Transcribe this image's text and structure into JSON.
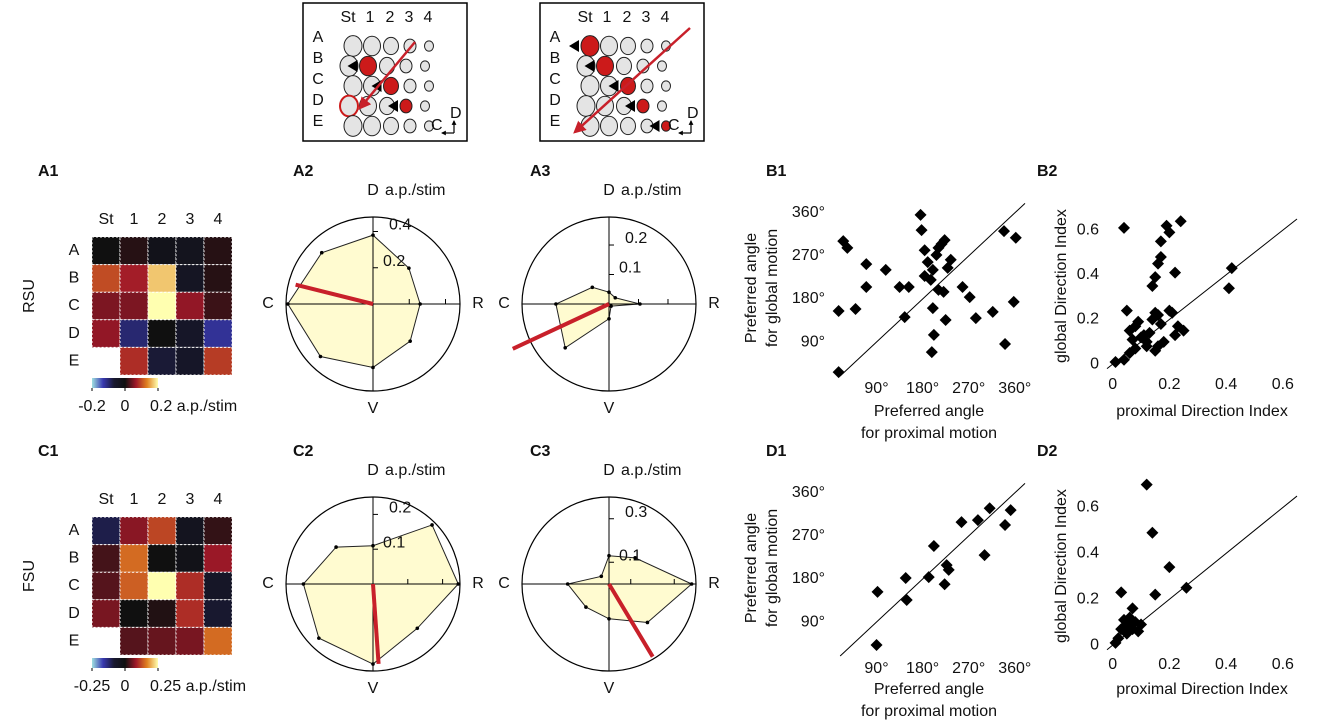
{
  "schematics": [
    {
      "columns": [
        "St",
        "1",
        "2",
        "3",
        "4"
      ],
      "rows": [
        "A",
        "B",
        "C",
        "D",
        "E"
      ],
      "compass": [
        "C",
        "D"
      ]
    },
    {
      "columns": [
        "St",
        "1",
        "2",
        "3",
        "4"
      ],
      "rows": [
        "A",
        "B",
        "C",
        "D",
        "E"
      ],
      "compass": [
        "C",
        "D"
      ]
    }
  ],
  "row_labels": [
    "RSU",
    "FSU"
  ],
  "chart_data": [
    {
      "type": "heatmap",
      "panel": "A1",
      "columns": [
        "St",
        "1",
        "2",
        "3",
        "4"
      ],
      "rows": [
        "A",
        "B",
        "C",
        "D",
        "E"
      ],
      "values": [
        [
          0.0,
          0.01,
          -0.02,
          -0.03,
          0.01
        ],
        [
          0.1,
          0.07,
          0.17,
          -0.04,
          0.01
        ],
        [
          0.05,
          0.05,
          0.2,
          0.06,
          0.02
        ],
        [
          0.06,
          -0.1,
          0.0,
          -0.05,
          -0.12
        ],
        [
          null,
          0.08,
          -0.07,
          -0.05,
          0.09
        ]
      ],
      "colorscale": [
        "#a0e0e0",
        "#3838b0",
        "#181830",
        "#101010",
        "#a01828",
        "#e08020",
        "#ffffb0"
      ],
      "clim": [
        -0.2,
        0.2
      ],
      "cticks": [
        {
          "value": -0.2,
          "label": "-0.2"
        },
        0,
        {
          "value": 0.2,
          "label": "0.2 a.p./stim"
        }
      ]
    },
    {
      "type": "polar",
      "panel": "A2",
      "direction_labels": [
        "R",
        "D",
        "C",
        "V"
      ],
      "rlabel": "a.p./stim",
      "rlim": [
        0,
        0.48
      ],
      "rticks": [
        0.2,
        0.4
      ],
      "theta": [
        0,
        45,
        90,
        135,
        180,
        225,
        270,
        315
      ],
      "values": [
        0.26,
        0.28,
        0.38,
        0.4,
        0.47,
        0.41,
        0.35,
        0.29
      ],
      "color": "#fffbd0",
      "vector": {
        "angle": 166,
        "value": 0.44,
        "color": "#c8202a"
      }
    },
    {
      "type": "polar",
      "panel": "A3",
      "direction_labels": [
        "R",
        "D",
        "C",
        "V"
      ],
      "rlabel": "a.p./stim",
      "rlim": [
        0,
        0.295
      ],
      "rticks": [
        0.1,
        0.2
      ],
      "theta": [
        0,
        45,
        90,
        135,
        180,
        225,
        270,
        315
      ],
      "values": [
        0.105,
        0.03,
        0.04,
        0.08,
        0.18,
        0.21,
        0.05,
        0.01
      ],
      "color": "#fffbd0",
      "vector": {
        "angle": 205,
        "value": 0.36,
        "color": "#c8202a"
      }
    },
    {
      "type": "scatter",
      "panel": "B1",
      "xlabel": [
        "Preferred angle",
        "for proximal motion"
      ],
      "ylabel": [
        "Preferred angle",
        "for global motion"
      ],
      "xlim": [
        5,
        380
      ],
      "ylim": [
        19,
        387
      ],
      "xticks": [
        {
          "value": 90,
          "label": "90°"
        },
        {
          "value": 180,
          "label": "180°"
        },
        {
          "value": 270,
          "label": "270°"
        },
        {
          "value": 360,
          "label": "360°"
        }
      ],
      "yticks": [
        {
          "value": 90,
          "label": "90°"
        },
        {
          "value": 180,
          "label": "180°"
        },
        {
          "value": 270,
          "label": "270°"
        },
        {
          "value": 360,
          "label": "360°"
        }
      ],
      "x": [
        25,
        33,
        16,
        49,
        70,
        70,
        108,
        135,
        153,
        176,
        178,
        184,
        184,
        190,
        196,
        200,
        207,
        211,
        217,
        223,
        229,
        235,
        200,
        211,
        221,
        145,
        258,
        272,
        284,
        317,
        341,
        339,
        362,
        358,
        198,
        202,
        225,
        16
      ],
      "values": [
        301,
        287,
        155,
        159,
        253,
        205,
        241,
        205,
        205,
        356,
        324,
        282,
        228,
        257,
        220,
        241,
        272,
        287,
        295,
        303,
        245,
        262,
        161,
        199,
        195,
        142,
        205,
        184,
        140,
        153,
        86,
        322,
        308,
        174,
        69,
        105,
        136,
        27
      ],
      "color": "#000000",
      "diagonal": true
    },
    {
      "type": "scatter",
      "panel": "B2",
      "xlabel": [
        "proximal Direction Index"
      ],
      "ylabel": [
        "global Direction Index"
      ],
      "xlim": [
        -0.02,
        0.65
      ],
      "ylim": [
        -0.035,
        0.735
      ],
      "xticks": [
        0,
        0.2,
        0.4,
        0.6
      ],
      "yticks": [
        0,
        0.2,
        0.4,
        0.6
      ],
      "x": [
        0.04,
        0.01,
        0.04,
        0.06,
        0.07,
        0.08,
        0.06,
        0.1,
        0.12,
        0.13,
        0.09,
        0.11,
        0.05,
        0.14,
        0.15,
        0.16,
        0.17,
        0.15,
        0.16,
        0.18,
        0.2,
        0.21,
        0.22,
        0.23,
        0.25,
        0.14,
        0.15,
        0.16,
        0.17,
        0.17,
        0.19,
        0.2,
        0.24,
        0.22,
        0.42,
        0.41,
        0.08,
        0.12
      ],
      "values": [
        0.61,
        0.01,
        0.02,
        0.05,
        0.11,
        0.17,
        0.15,
        0.12,
        0.1,
        0.14,
        0.19,
        0.13,
        0.24,
        0.2,
        0.23,
        0.22,
        0.18,
        0.06,
        0.08,
        0.1,
        0.24,
        0.23,
        0.13,
        0.17,
        0.15,
        0.35,
        0.39,
        0.45,
        0.48,
        0.55,
        0.62,
        0.59,
        0.64,
        0.41,
        0.43,
        0.34,
        0.07,
        0.08
      ],
      "color": "#000000",
      "diagonal": true
    },
    {
      "type": "heatmap",
      "panel": "C1",
      "columns": [
        "St",
        "1",
        "2",
        "3",
        "4"
      ],
      "rows": [
        "A",
        "B",
        "C",
        "D",
        "E"
      ],
      "values": [
        [
          -0.1,
          0.07,
          0.12,
          -0.04,
          0.02
        ],
        [
          0.03,
          0.15,
          0.0,
          -0.02,
          0.08
        ],
        [
          0.04,
          0.14,
          0.25,
          0.1,
          -0.06
        ],
        [
          0.06,
          0.0,
          0.01,
          0.1,
          -0.08
        ],
        [
          null,
          0.04,
          0.05,
          0.06,
          0.15
        ]
      ],
      "colorscale": [
        "#a0e0e0",
        "#3838b0",
        "#181830",
        "#101010",
        "#a01828",
        "#e08020",
        "#ffffb0"
      ],
      "clim": [
        -0.25,
        0.25
      ],
      "cticks": [
        {
          "value": -0.25,
          "label": "-0.25"
        },
        0,
        {
          "value": 0.25,
          "label": "0.25 a.p./stim"
        }
      ]
    },
    {
      "type": "polar",
      "panel": "C2",
      "direction_labels": [
        "R",
        "D",
        "C",
        "V"
      ],
      "rlabel": "a.p./stim",
      "rlim": [
        0,
        0.25
      ],
      "rticks": [
        0.1,
        0.2
      ],
      "theta": [
        0,
        45,
        90,
        135,
        180,
        225,
        270,
        315
      ],
      "values": [
        0.245,
        0.24,
        0.11,
        0.15,
        0.2,
        0.22,
        0.23,
        0.18
      ],
      "color": "#fffbd0",
      "vector": {
        "angle": 274,
        "value": 0.23,
        "color": "#c8202a"
      }
    },
    {
      "type": "polar",
      "panel": "C3",
      "direction_labels": [
        "R",
        "D",
        "C",
        "V"
      ],
      "rlabel": "a.p./stim",
      "rlim": [
        0,
        0.4
      ],
      "rticks": [
        0.1,
        0.3
      ],
      "theta": [
        0,
        45,
        90,
        135,
        180,
        225,
        270,
        315
      ],
      "values": [
        0.38,
        0.17,
        0.13,
        0.05,
        0.19,
        0.15,
        0.16,
        0.25
      ],
      "color": "#fffbd0",
      "vector": {
        "angle": 301,
        "value": 0.39,
        "color": "#c8202a"
      }
    },
    {
      "type": "scatter",
      "panel": "D1",
      "xlabel": [
        "Preferred angle",
        "for proximal motion"
      ],
      "ylabel": [
        "Preferred angle",
        "for global motion"
      ],
      "xlim": [
        5,
        380
      ],
      "ylim": [
        19,
        387
      ],
      "xticks": [
        {
          "value": 90,
          "label": "90°"
        },
        {
          "value": 180,
          "label": "180°"
        },
        {
          "value": 270,
          "label": "270°"
        },
        {
          "value": 360,
          "label": "360°"
        }
      ],
      "yticks": [
        {
          "value": 90,
          "label": "90°"
        },
        {
          "value": 180,
          "label": "180°"
        },
        {
          "value": 270,
          "label": "270°"
        },
        {
          "value": 360,
          "label": "360°"
        }
      ],
      "x": [
        90,
        92,
        147,
        149,
        192,
        202,
        227,
        231,
        223,
        256,
        288,
        301,
        311,
        341,
        352
      ],
      "values": [
        42,
        153,
        182,
        136,
        184,
        249,
        209,
        199,
        169,
        299,
        303,
        230,
        328,
        293,
        324
      ],
      "color": "#000000",
      "diagonal": true
    },
    {
      "type": "scatter",
      "panel": "D2",
      "xlabel": [
        "proximal Direction Index"
      ],
      "ylabel": [
        "global Direction Index"
      ],
      "xlim": [
        -0.02,
        0.65
      ],
      "ylim": [
        -0.03,
        0.72
      ],
      "xticks": [
        0,
        0.2,
        0.4,
        0.6
      ],
      "yticks": [
        0,
        0.2,
        0.4,
        0.6
      ],
      "x": [
        0.12,
        0.14,
        0.2,
        0.15,
        0.26,
        0.03,
        0.07,
        0.02,
        0.03,
        0.04,
        0.05,
        0.06,
        0.08,
        0.09,
        0.1,
        0.05,
        0.07,
        0.01
      ],
      "values": [
        0.7,
        0.49,
        0.34,
        0.22,
        0.25,
        0.23,
        0.16,
        0.03,
        0.07,
        0.11,
        0.09,
        0.12,
        0.1,
        0.06,
        0.09,
        0.05,
        0.07,
        0.01
      ],
      "color": "#000000",
      "diagonal": true
    }
  ]
}
